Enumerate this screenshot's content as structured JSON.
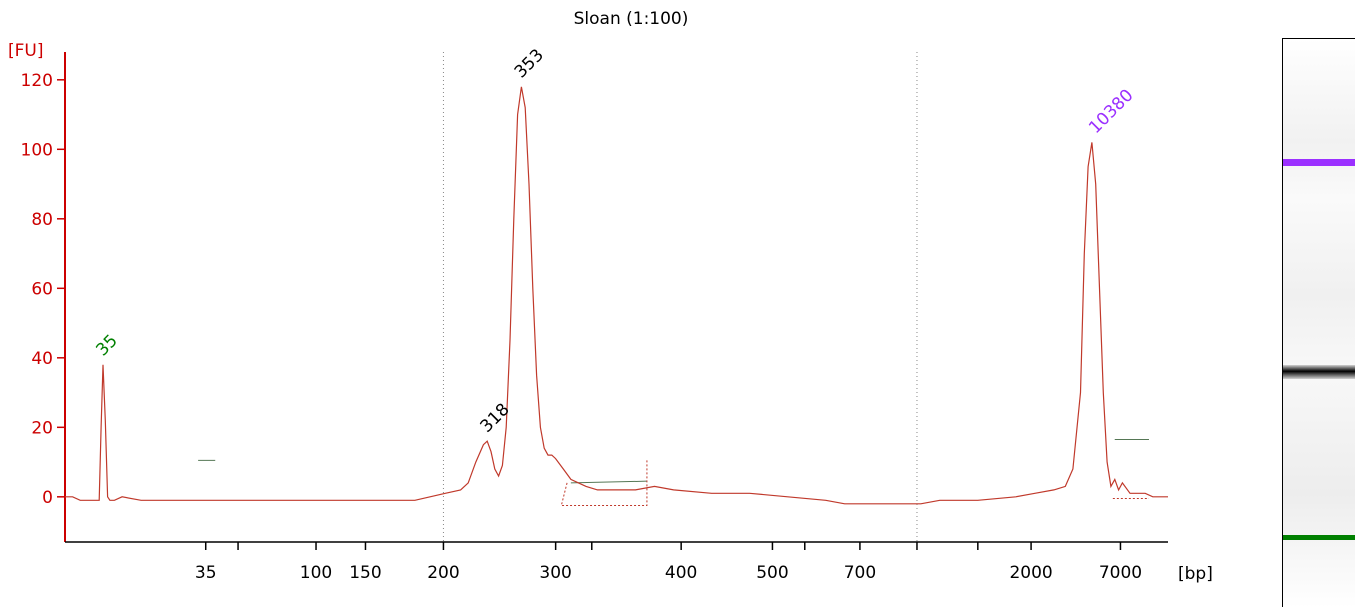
{
  "chart_data": {
    "type": "line",
    "title": "Sloan (1:100)",
    "ylabel": "[FU]",
    "xlabel": "[bp]",
    "ylim": [
      -13,
      128
    ],
    "y_ticks": [
      "0",
      "20",
      "40",
      "60",
      "80",
      "100",
      "120"
    ],
    "x_ticks": [
      "35",
      "100",
      "150",
      "200",
      "300",
      "400",
      "500",
      "700",
      "2000",
      "7000"
    ],
    "grid": "dotted vertical at 200 and between 700 and 2000",
    "peaks": [
      {
        "label": "35",
        "color": "#008000",
        "height_fu": 38
      },
      {
        "label": "318",
        "color": "#000000",
        "height_fu": 16
      },
      {
        "label": "353",
        "color": "#000000",
        "height_fu": 118
      },
      {
        "label": "10380",
        "color": "#9b30ff",
        "height_fu": 102
      }
    ],
    "series": [
      {
        "color": "#c0392b",
        "x_index": [
          0,
          2,
          4,
          8,
          9,
          9.5,
          10,
          10.6,
          11.2,
          11.8,
          12.3,
          13,
          15,
          20,
          40,
          60,
          75,
          92,
          96,
          100,
          104,
          106,
          108,
          110,
          111,
          112,
          113,
          114,
          115,
          116,
          117,
          118,
          119,
          120,
          121,
          122,
          123,
          124,
          125,
          126,
          127,
          128,
          129,
          131,
          133,
          135,
          137,
          140,
          145,
          150,
          155,
          160,
          170,
          180,
          190,
          200,
          205,
          210,
          215,
          220,
          225,
          230,
          240,
          250,
          255,
          260,
          263,
          265,
          267,
          268,
          269,
          270,
          271,
          272,
          273,
          274,
          275,
          276,
          277,
          278,
          280,
          282,
          284,
          286,
          288,
          290
        ],
        "y_fu": [
          0,
          0,
          -1,
          -1,
          -1,
          20,
          38,
          22,
          0,
          -1,
          -1,
          -1,
          0,
          -1,
          -1,
          -1,
          -1,
          -1,
          0,
          1,
          2,
          4,
          10,
          15,
          16,
          13,
          8,
          6,
          9,
          20,
          45,
          80,
          110,
          118,
          112,
          90,
          60,
          35,
          20,
          14,
          12,
          12,
          11,
          8,
          5,
          4,
          3,
          2,
          2,
          2,
          3,
          2,
          1,
          1,
          0,
          -1,
          -2,
          -2,
          -2,
          -2,
          -2,
          -1,
          -1,
          0,
          1,
          2,
          3,
          8,
          30,
          70,
          95,
          102,
          90,
          60,
          30,
          10,
          3,
          5,
          2,
          4,
          1,
          1,
          1,
          0,
          0,
          0
        ]
      }
    ]
  },
  "gel": {
    "upper_marker_color": "#9b30ff",
    "lower_marker_color": "#008000",
    "band_color": "#000000"
  }
}
